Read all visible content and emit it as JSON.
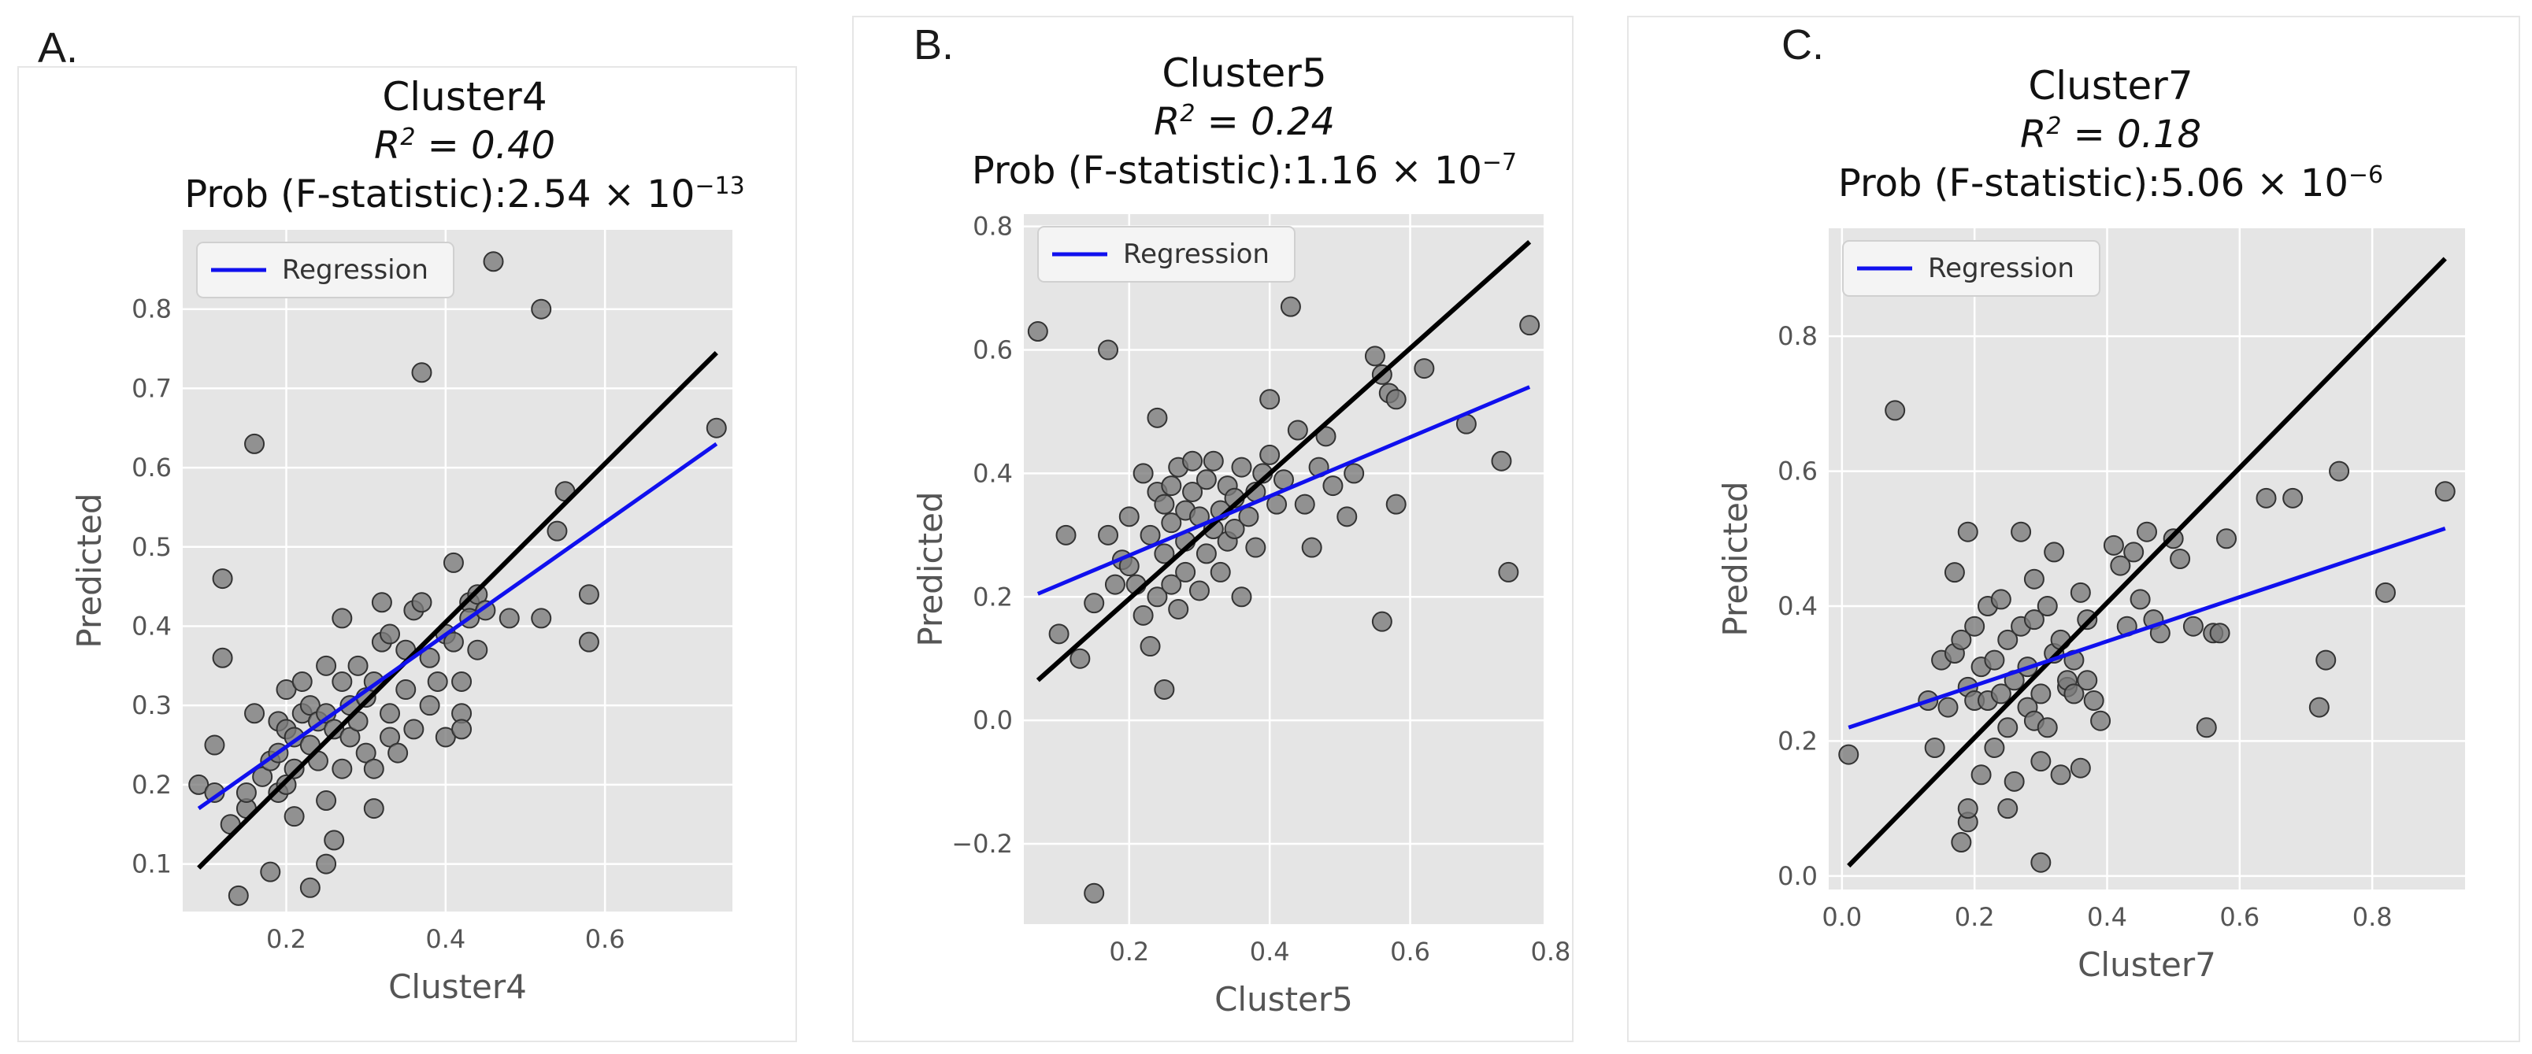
{
  "figure": {
    "colors": {
      "plot_bg": "#e5e5e5",
      "grid": "#ffffff",
      "regression": "#1010ee",
      "identity": "#000000",
      "point_fill": "#7a7a7a",
      "point_stroke": "#333333",
      "tick_text": "#555555",
      "axis_label": "#555555"
    }
  },
  "panels": [
    {
      "letter": "A.",
      "title": "Cluster4",
      "r2_label": "R",
      "r2_sup": "2",
      "r2_value": " = 0.40",
      "prob_prefix": "Prob (F-statistic):2.54 × 10",
      "prob_exp": "−13"
    },
    {
      "letter": "B.",
      "title": "Cluster5",
      "r2_label": "R",
      "r2_sup": "2",
      "r2_value": " = 0.24",
      "prob_prefix": "Prob (F-statistic):1.16 × 10",
      "prob_exp": "−7"
    },
    {
      "letter": "C.",
      "title": "Cluster7",
      "r2_label": "R",
      "r2_sup": "2",
      "r2_value": " = 0.18",
      "prob_prefix": "Prob (F-statistic):5.06 × 10",
      "prob_exp": "−6"
    }
  ],
  "chart_data": [
    {
      "type": "scatter",
      "title": "Cluster4",
      "xlabel": "Cluster4",
      "ylabel": "Predicted",
      "xlim": [
        0.07,
        0.76
      ],
      "ylim": [
        0.04,
        0.9
      ],
      "xticks": [
        0.2,
        0.4,
        0.6
      ],
      "xtick_labels": [
        "0.2",
        "0.4",
        "0.6"
      ],
      "yticks": [
        0.1,
        0.2,
        0.3,
        0.4,
        0.5,
        0.6,
        0.7,
        0.8
      ],
      "ytick_labels": [
        "0.1",
        "0.2",
        "0.3",
        "0.4",
        "0.5",
        "0.6",
        "0.7",
        "0.8"
      ],
      "legend_label": "Regression",
      "legend_position": "top-left",
      "regression": {
        "x": [
          0.09,
          0.74
        ],
        "y": [
          0.17,
          0.63
        ]
      },
      "identity": {
        "x": [
          0.09,
          0.74
        ],
        "y": [
          0.095,
          0.745
        ]
      },
      "points": [
        [
          0.09,
          0.2
        ],
        [
          0.11,
          0.19
        ],
        [
          0.11,
          0.25
        ],
        [
          0.12,
          0.46
        ],
        [
          0.12,
          0.36
        ],
        [
          0.14,
          0.06
        ],
        [
          0.13,
          0.15
        ],
        [
          0.15,
          0.17
        ],
        [
          0.15,
          0.19
        ],
        [
          0.16,
          0.29
        ],
        [
          0.16,
          0.63
        ],
        [
          0.17,
          0.21
        ],
        [
          0.18,
          0.09
        ],
        [
          0.18,
          0.23
        ],
        [
          0.19,
          0.24
        ],
        [
          0.19,
          0.28
        ],
        [
          0.19,
          0.19
        ],
        [
          0.2,
          0.32
        ],
        [
          0.2,
          0.27
        ],
        [
          0.2,
          0.2
        ],
        [
          0.21,
          0.16
        ],
        [
          0.21,
          0.22
        ],
        [
          0.21,
          0.26
        ],
        [
          0.22,
          0.33
        ],
        [
          0.22,
          0.29
        ],
        [
          0.23,
          0.07
        ],
        [
          0.23,
          0.25
        ],
        [
          0.23,
          0.3
        ],
        [
          0.24,
          0.28
        ],
        [
          0.24,
          0.23
        ],
        [
          0.25,
          0.18
        ],
        [
          0.25,
          0.35
        ],
        [
          0.25,
          0.29
        ],
        [
          0.25,
          0.1
        ],
        [
          0.26,
          0.13
        ],
        [
          0.26,
          0.27
        ],
        [
          0.27,
          0.22
        ],
        [
          0.27,
          0.33
        ],
        [
          0.27,
          0.41
        ],
        [
          0.28,
          0.26
        ],
        [
          0.28,
          0.3
        ],
        [
          0.29,
          0.35
        ],
        [
          0.29,
          0.28
        ],
        [
          0.3,
          0.24
        ],
        [
          0.3,
          0.31
        ],
        [
          0.31,
          0.17
        ],
        [
          0.31,
          0.22
        ],
        [
          0.31,
          0.33
        ],
        [
          0.32,
          0.43
        ],
        [
          0.32,
          0.38
        ],
        [
          0.33,
          0.29
        ],
        [
          0.33,
          0.26
        ],
        [
          0.33,
          0.39
        ],
        [
          0.34,
          0.24
        ],
        [
          0.35,
          0.32
        ],
        [
          0.35,
          0.37
        ],
        [
          0.36,
          0.42
        ],
        [
          0.36,
          0.27
        ],
        [
          0.37,
          0.72
        ],
        [
          0.37,
          0.43
        ],
        [
          0.38,
          0.3
        ],
        [
          0.38,
          0.36
        ],
        [
          0.39,
          0.33
        ],
        [
          0.4,
          0.26
        ],
        [
          0.4,
          0.39
        ],
        [
          0.41,
          0.38
        ],
        [
          0.41,
          0.48
        ],
        [
          0.42,
          0.29
        ],
        [
          0.42,
          0.27
        ],
        [
          0.42,
          0.33
        ],
        [
          0.43,
          0.43
        ],
        [
          0.43,
          0.41
        ],
        [
          0.44,
          0.37
        ],
        [
          0.44,
          0.44
        ],
        [
          0.45,
          0.42
        ],
        [
          0.46,
          0.86
        ],
        [
          0.48,
          0.41
        ],
        [
          0.52,
          0.8
        ],
        [
          0.52,
          0.41
        ],
        [
          0.54,
          0.52
        ],
        [
          0.55,
          0.57
        ],
        [
          0.58,
          0.44
        ],
        [
          0.58,
          0.38
        ],
        [
          0.74,
          0.65
        ]
      ]
    },
    {
      "type": "scatter",
      "title": "Cluster5",
      "xlabel": "Cluster5",
      "ylabel": "Predicted",
      "xlim": [
        0.05,
        0.79
      ],
      "ylim": [
        -0.33,
        0.82
      ],
      "xticks": [
        0.2,
        0.4,
        0.6,
        0.8
      ],
      "xtick_labels": [
        "0.2",
        "0.4",
        "0.6",
        "0.8"
      ],
      "yticks": [
        -0.2,
        0.0,
        0.2,
        0.4,
        0.6,
        0.8
      ],
      "ytick_labels": [
        "−0.2",
        "0.0",
        "0.2",
        "0.4",
        "0.6",
        "0.8"
      ],
      "legend_label": "Regression",
      "legend_position": "top-left",
      "regression": {
        "x": [
          0.07,
          0.77
        ],
        "y": [
          0.205,
          0.54
        ]
      },
      "identity": {
        "x": [
          0.07,
          0.77
        ],
        "y": [
          0.065,
          0.775
        ]
      },
      "points": [
        [
          0.07,
          0.63
        ],
        [
          0.1,
          0.14
        ],
        [
          0.11,
          0.3
        ],
        [
          0.13,
          0.1
        ],
        [
          0.15,
          -0.28
        ],
        [
          0.15,
          0.19
        ],
        [
          0.17,
          0.6
        ],
        [
          0.17,
          0.3
        ],
        [
          0.18,
          0.22
        ],
        [
          0.19,
          0.26
        ],
        [
          0.2,
          0.25
        ],
        [
          0.2,
          0.33
        ],
        [
          0.21,
          0.22
        ],
        [
          0.22,
          0.17
        ],
        [
          0.22,
          0.4
        ],
        [
          0.23,
          0.3
        ],
        [
          0.23,
          0.12
        ],
        [
          0.24,
          0.49
        ],
        [
          0.24,
          0.37
        ],
        [
          0.24,
          0.2
        ],
        [
          0.25,
          0.05
        ],
        [
          0.25,
          0.35
        ],
        [
          0.25,
          0.27
        ],
        [
          0.26,
          0.38
        ],
        [
          0.26,
          0.32
        ],
        [
          0.26,
          0.22
        ],
        [
          0.27,
          0.41
        ],
        [
          0.27,
          0.18
        ],
        [
          0.28,
          0.34
        ],
        [
          0.28,
          0.29
        ],
        [
          0.28,
          0.24
        ],
        [
          0.29,
          0.42
        ],
        [
          0.29,
          0.37
        ],
        [
          0.3,
          0.33
        ],
        [
          0.3,
          0.21
        ],
        [
          0.31,
          0.39
        ],
        [
          0.31,
          0.27
        ],
        [
          0.32,
          0.31
        ],
        [
          0.32,
          0.42
        ],
        [
          0.33,
          0.24
        ],
        [
          0.33,
          0.34
        ],
        [
          0.34,
          0.29
        ],
        [
          0.34,
          0.38
        ],
        [
          0.35,
          0.36
        ],
        [
          0.35,
          0.31
        ],
        [
          0.36,
          0.2
        ],
        [
          0.36,
          0.41
        ],
        [
          0.37,
          0.33
        ],
        [
          0.38,
          0.37
        ],
        [
          0.38,
          0.28
        ],
        [
          0.39,
          0.4
        ],
        [
          0.4,
          0.52
        ],
        [
          0.4,
          0.43
        ],
        [
          0.41,
          0.35
        ],
        [
          0.42,
          0.39
        ],
        [
          0.43,
          0.67
        ],
        [
          0.44,
          0.47
        ],
        [
          0.45,
          0.35
        ],
        [
          0.46,
          0.28
        ],
        [
          0.47,
          0.41
        ],
        [
          0.48,
          0.46
        ],
        [
          0.49,
          0.38
        ],
        [
          0.51,
          0.33
        ],
        [
          0.52,
          0.4
        ],
        [
          0.55,
          0.59
        ],
        [
          0.56,
          0.56
        ],
        [
          0.56,
          0.16
        ],
        [
          0.57,
          0.53
        ],
        [
          0.58,
          0.35
        ],
        [
          0.58,
          0.52
        ],
        [
          0.62,
          0.57
        ],
        [
          0.68,
          0.48
        ],
        [
          0.73,
          0.42
        ],
        [
          0.74,
          0.24
        ],
        [
          0.77,
          0.64
        ]
      ]
    },
    {
      "type": "scatter",
      "title": "Cluster7",
      "xlabel": "Cluster7",
      "ylabel": "Predicted",
      "xlim": [
        -0.02,
        0.94
      ],
      "ylim": [
        -0.02,
        0.96
      ],
      "xticks": [
        0.0,
        0.2,
        0.4,
        0.6,
        0.8
      ],
      "xtick_labels": [
        "0.0",
        "0.2",
        "0.4",
        "0.6",
        "0.8"
      ],
      "yticks": [
        0.0,
        0.2,
        0.4,
        0.6,
        0.8
      ],
      "ytick_labels": [
        "0.0",
        "0.2",
        "0.4",
        "0.6",
        "0.8"
      ],
      "legend_label": "Regression",
      "legend_position": "top-left",
      "regression": {
        "x": [
          0.01,
          0.91
        ],
        "y": [
          0.22,
          0.515
        ]
      },
      "identity": {
        "x": [
          0.01,
          0.91
        ],
        "y": [
          0.015,
          0.915
        ]
      },
      "points": [
        [
          0.01,
          0.18
        ],
        [
          0.08,
          0.69
        ],
        [
          0.13,
          0.26
        ],
        [
          0.14,
          0.19
        ],
        [
          0.15,
          0.32
        ],
        [
          0.16,
          0.25
        ],
        [
          0.17,
          0.33
        ],
        [
          0.17,
          0.45
        ],
        [
          0.18,
          0.05
        ],
        [
          0.18,
          0.35
        ],
        [
          0.19,
          0.08
        ],
        [
          0.19,
          0.1
        ],
        [
          0.19,
          0.28
        ],
        [
          0.19,
          0.51
        ],
        [
          0.2,
          0.26
        ],
        [
          0.2,
          0.37
        ],
        [
          0.21,
          0.15
        ],
        [
          0.21,
          0.31
        ],
        [
          0.22,
          0.26
        ],
        [
          0.22,
          0.4
        ],
        [
          0.23,
          0.32
        ],
        [
          0.23,
          0.19
        ],
        [
          0.24,
          0.27
        ],
        [
          0.24,
          0.41
        ],
        [
          0.25,
          0.1
        ],
        [
          0.25,
          0.35
        ],
        [
          0.25,
          0.22
        ],
        [
          0.26,
          0.14
        ],
        [
          0.26,
          0.29
        ],
        [
          0.27,
          0.37
        ],
        [
          0.27,
          0.51
        ],
        [
          0.28,
          0.25
        ],
        [
          0.28,
          0.31
        ],
        [
          0.29,
          0.44
        ],
        [
          0.29,
          0.23
        ],
        [
          0.29,
          0.38
        ],
        [
          0.3,
          0.02
        ],
        [
          0.3,
          0.17
        ],
        [
          0.3,
          0.27
        ],
        [
          0.31,
          0.4
        ],
        [
          0.31,
          0.22
        ],
        [
          0.32,
          0.33
        ],
        [
          0.32,
          0.48
        ],
        [
          0.33,
          0.35
        ],
        [
          0.33,
          0.15
        ],
        [
          0.34,
          0.28
        ],
        [
          0.34,
          0.29
        ],
        [
          0.35,
          0.27
        ],
        [
          0.35,
          0.32
        ],
        [
          0.36,
          0.16
        ],
        [
          0.36,
          0.42
        ],
        [
          0.37,
          0.29
        ],
        [
          0.37,
          0.38
        ],
        [
          0.38,
          0.26
        ],
        [
          0.39,
          0.23
        ],
        [
          0.41,
          0.49
        ],
        [
          0.42,
          0.46
        ],
        [
          0.43,
          0.37
        ],
        [
          0.44,
          0.48
        ],
        [
          0.45,
          0.41
        ],
        [
          0.46,
          0.51
        ],
        [
          0.47,
          0.38
        ],
        [
          0.48,
          0.36
        ],
        [
          0.5,
          0.5
        ],
        [
          0.51,
          0.47
        ],
        [
          0.53,
          0.37
        ],
        [
          0.55,
          0.22
        ],
        [
          0.56,
          0.36
        ],
        [
          0.57,
          0.36
        ],
        [
          0.58,
          0.5
        ],
        [
          0.64,
          0.56
        ],
        [
          0.68,
          0.56
        ],
        [
          0.72,
          0.25
        ],
        [
          0.73,
          0.32
        ],
        [
          0.75,
          0.6
        ],
        [
          0.82,
          0.42
        ],
        [
          0.91,
          0.57
        ]
      ]
    }
  ]
}
